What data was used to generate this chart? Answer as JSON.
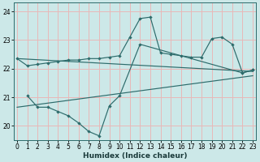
{
  "xlabel": "Humidex (Indice chaleur)",
  "line1_x": [
    0,
    1,
    2,
    3,
    4,
    5,
    6,
    7,
    8,
    9,
    10,
    11,
    12,
    13,
    14,
    15,
    16,
    17,
    18,
    19,
    20,
    21,
    22,
    23
  ],
  "line1_y": [
    22.35,
    22.1,
    22.15,
    22.2,
    22.25,
    22.3,
    22.3,
    22.35,
    22.35,
    22.4,
    22.45,
    23.1,
    23.75,
    23.8,
    22.55,
    22.5,
    22.45,
    22.4,
    22.4,
    23.05,
    23.1,
    22.85,
    21.85,
    21.95
  ],
  "line2_x": [
    1,
    2,
    3,
    4,
    5,
    6,
    7,
    8,
    9,
    10,
    12,
    22,
    23
  ],
  "line2_y": [
    21.05,
    20.65,
    20.65,
    20.5,
    20.35,
    20.1,
    19.8,
    19.65,
    20.7,
    21.05,
    22.85,
    21.85,
    21.95
  ],
  "trend1_x": [
    0,
    23
  ],
  "trend1_y": [
    22.35,
    21.9
  ],
  "trend2_x": [
    0,
    23
  ],
  "trend2_y": [
    20.65,
    21.75
  ],
  "bg_color": "#cce8e8",
  "grid_color": "#e8b8b8",
  "line_color": "#2d6b6b",
  "ylim": [
    19.5,
    24.3
  ],
  "xlim": [
    -0.3,
    23.3
  ],
  "yticks": [
    20,
    21,
    22,
    23,
    24
  ],
  "xticks": [
    0,
    1,
    2,
    3,
    4,
    5,
    6,
    7,
    8,
    9,
    10,
    11,
    12,
    13,
    14,
    15,
    16,
    17,
    18,
    19,
    20,
    21,
    22,
    23
  ]
}
